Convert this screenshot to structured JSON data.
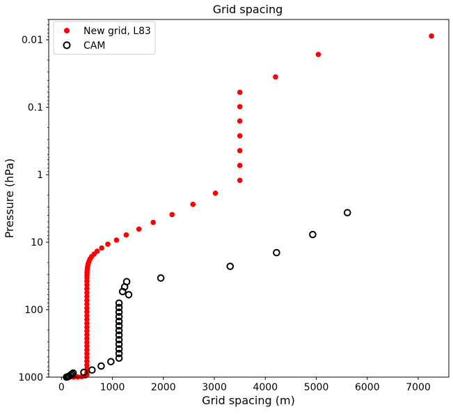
{
  "chart_data": {
    "type": "scatter",
    "title": "Grid spacing",
    "xlabel": "Grid spacing (m)",
    "ylabel": "Pressure (hPa)",
    "xlim": [
      -250,
      7600
    ],
    "ylim": [
      1000,
      0.005
    ],
    "yscale": "log",
    "yaxis_inverted": true,
    "x_ticks": [
      0,
      1000,
      2000,
      3000,
      4000,
      5000,
      6000,
      7000
    ],
    "x_tick_labels": [
      "0",
      "1000",
      "2000",
      "3000",
      "4000",
      "5000",
      "6000",
      "7000"
    ],
    "y_ticks": [
      0.01,
      0.1,
      1,
      10,
      100,
      1000
    ],
    "y_tick_labels": [
      "0.01",
      "0.1",
      "1",
      "10",
      "100",
      "1000"
    ],
    "grid": false,
    "legend_position": "top-left",
    "series": [
      {
        "name": "New grid, L83",
        "marker": "filled-circle",
        "color": "#ff0000",
        "points": [
          [
            7260,
            0.0088
          ],
          [
            5040,
            0.0165
          ],
          [
            4200,
            0.0355
          ],
          [
            3500,
            0.06
          ],
          [
            3500,
            0.098
          ],
          [
            3500,
            0.16
          ],
          [
            3500,
            0.265
          ],
          [
            3500,
            0.44
          ],
          [
            3500,
            0.73
          ],
          [
            3500,
            1.21
          ],
          [
            3020,
            1.88
          ],
          [
            2580,
            2.75
          ],
          [
            2170,
            3.9
          ],
          [
            1800,
            5.1
          ],
          [
            1520,
            6.4
          ],
          [
            1270,
            7.8
          ],
          [
            1080,
            9.3
          ],
          [
            910,
            10.7
          ],
          [
            790,
            12.2
          ],
          [
            700,
            13.6
          ],
          [
            640,
            15.0
          ],
          [
            590,
            16.4
          ],
          [
            560,
            17.8
          ],
          [
            540,
            19.4
          ],
          [
            525,
            21.0
          ],
          [
            515,
            22.7
          ],
          [
            508,
            24.5
          ],
          [
            504,
            26.5
          ],
          [
            502,
            28.6
          ],
          [
            501,
            31.0
          ],
          [
            500,
            34.0
          ],
          [
            500,
            38
          ],
          [
            500,
            43
          ],
          [
            500,
            49
          ],
          [
            500,
            56
          ],
          [
            500,
            64
          ],
          [
            500,
            73
          ],
          [
            500,
            83
          ],
          [
            500,
            95
          ],
          [
            500,
            108
          ],
          [
            500,
            123
          ],
          [
            500,
            140
          ],
          [
            500,
            160
          ],
          [
            500,
            182
          ],
          [
            500,
            207
          ],
          [
            500,
            235
          ],
          [
            500,
            268
          ],
          [
            500,
            305
          ],
          [
            500,
            347
          ],
          [
            500,
            395
          ],
          [
            500,
            450
          ],
          [
            500,
            512
          ],
          [
            500,
            583
          ],
          [
            500,
            663
          ],
          [
            500,
            754
          ],
          [
            500,
            858
          ],
          [
            500,
            920
          ],
          [
            470,
            960
          ],
          [
            400,
            985
          ],
          [
            320,
            995
          ],
          [
            240,
            1000
          ]
        ]
      },
      {
        "name": "CAM",
        "marker": "open-circle",
        "color": "#000000",
        "points": [
          [
            5610,
            3.65
          ],
          [
            4930,
            7.7
          ],
          [
            4220,
            14.3
          ],
          [
            3310,
            22.8
          ],
          [
            1950,
            34.0
          ],
          [
            1280,
            38.5
          ],
          [
            1240,
            46.0
          ],
          [
            1200,
            54.0
          ],
          [
            1320,
            60.0
          ],
          [
            1130,
            80
          ],
          [
            1130,
            93
          ],
          [
            1130,
            109
          ],
          [
            1130,
            127
          ],
          [
            1130,
            149
          ],
          [
            1130,
            174
          ],
          [
            1130,
            204
          ],
          [
            1130,
            238
          ],
          [
            1130,
            279
          ],
          [
            1130,
            326
          ],
          [
            1130,
            382
          ],
          [
            1130,
            447
          ],
          [
            1130,
            523
          ],
          [
            970,
            590
          ],
          [
            780,
            685
          ],
          [
            600,
            785
          ],
          [
            440,
            850
          ],
          [
            230,
            870
          ],
          [
            205,
            900
          ],
          [
            180,
            935
          ],
          [
            150,
            965
          ],
          [
            125,
            985
          ],
          [
            100,
            1000
          ]
        ]
      }
    ]
  }
}
